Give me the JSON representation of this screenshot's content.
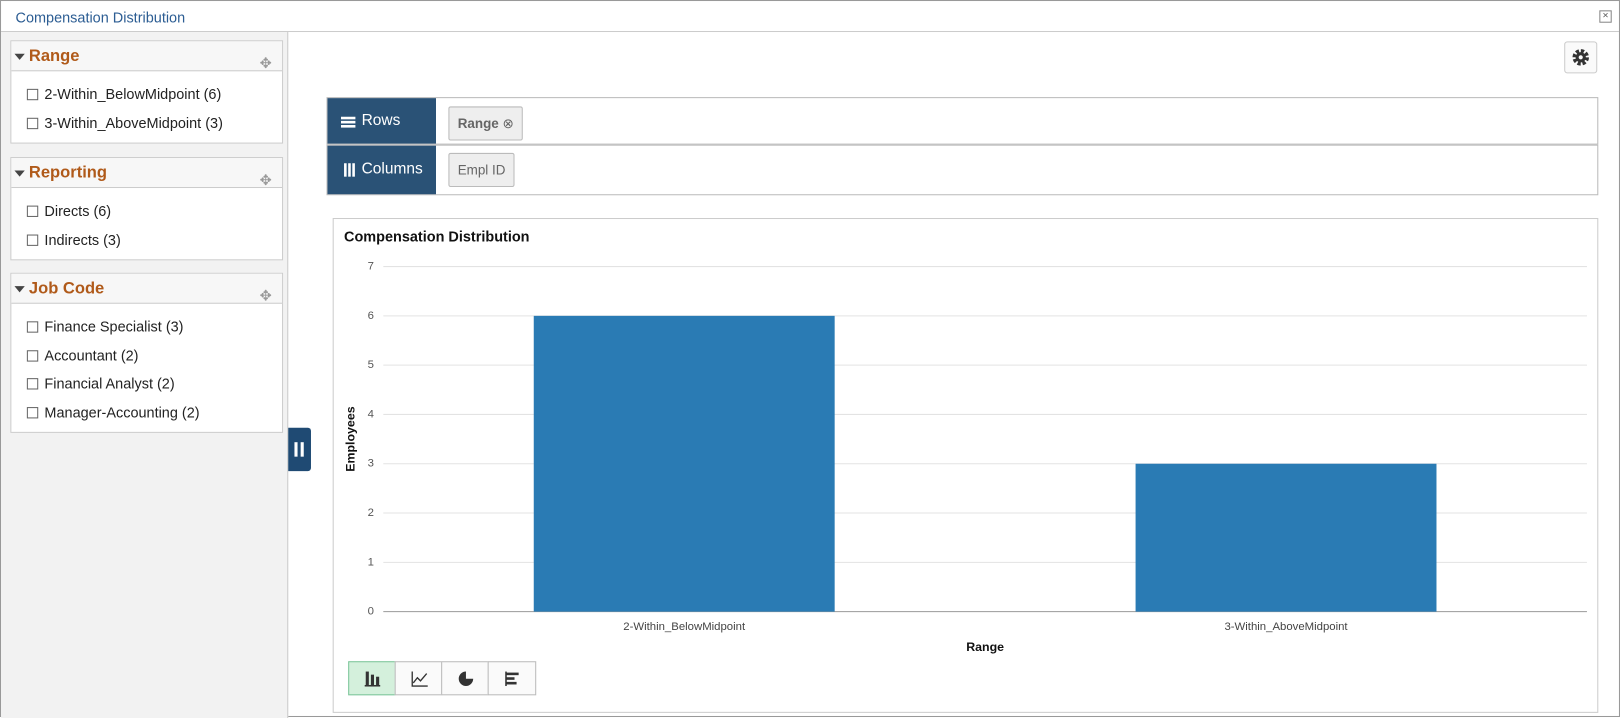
{
  "window": {
    "title": "Compensation Distribution"
  },
  "facets": [
    {
      "title": "Range",
      "items": [
        "2-Within_BelowMidpoint (6)",
        "3-Within_AboveMidpoint (3)"
      ]
    },
    {
      "title": "Reporting",
      "items": [
        "Directs (6)",
        "Indirects (3)"
      ]
    },
    {
      "title": "Job Code",
      "items": [
        "Finance Specialist (3)",
        "Accountant (2)",
        "Financial Analyst (2)",
        "Manager-Accounting (2)"
      ]
    }
  ],
  "pivot": {
    "rows_label": "Rows",
    "rows_chip": "Range",
    "columns_label": "Columns",
    "columns_chip": "Empl ID"
  },
  "chart_data": {
    "type": "bar",
    "title": "Compensation Distribution",
    "x_label": "Range",
    "y_label": "Employees",
    "categories": [
      "2-Within_BelowMidpoint",
      "3-Within_AboveMidpoint"
    ],
    "values": [
      6,
      3
    ],
    "color": "#2a7bb4",
    "ylim": [
      0,
      7
    ],
    "yticks": [
      0,
      1,
      2,
      3,
      4,
      5,
      6,
      7
    ],
    "grid": true
  }
}
